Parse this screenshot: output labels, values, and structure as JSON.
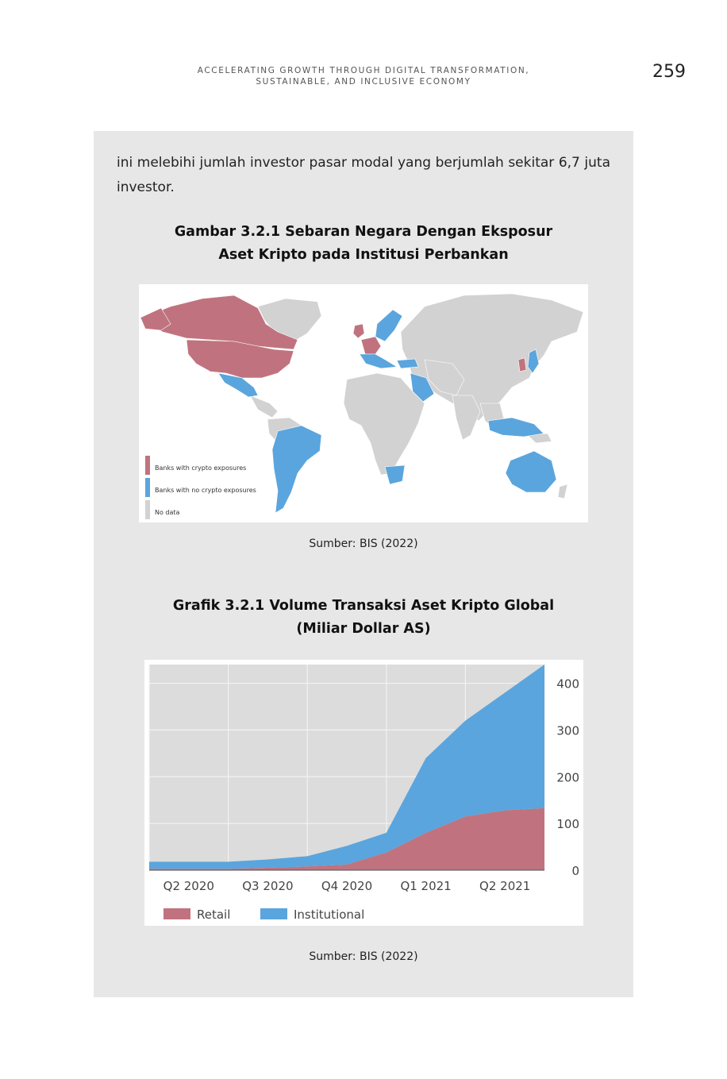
{
  "header": {
    "running_head_line1": "ACCELERATING GROWTH THROUGH DIGITAL TRANSFORMATION,",
    "running_head_line2": "SUSTAINABLE, AND INCLUSIVE ECONOMY",
    "page_number": "259"
  },
  "body": {
    "paragraph": "ini melebihi jumlah investor pasar modal yang berjumlah sekitar 6,7 juta investor."
  },
  "figure1": {
    "title_line1": "Gambar 3.2.1 Sebaran Negara Dengan Eksposur",
    "title_line2": "Aset Kripto pada Institusi Perbankan",
    "legend": [
      {
        "label": "Banks with crypto exposures",
        "color": "#c0737e"
      },
      {
        "label": "Banks with no crypto exposures",
        "color": "#5aa5dd"
      },
      {
        "label": "No data",
        "color": "#d2d2d2"
      }
    ],
    "source": "Sumber: BIS (2022)"
  },
  "figure2": {
    "title_line1": "Grafik 3.2.1 Volume Transaksi Aset Kripto Global",
    "title_line2": "(Miliar Dollar AS)",
    "source": "Sumber: BIS (2022)"
  },
  "chart_data": {
    "type": "area",
    "stacked": true,
    "x": [
      "Q2 2020",
      "Q3 2020",
      "Q4 2020",
      "Q1 2021",
      "Q2 2021"
    ],
    "x_values": [
      0,
      0.5,
      1,
      1.5,
      2,
      2.5,
      3,
      3.5,
      4,
      4.5,
      5
    ],
    "series": [
      {
        "name": "Retail",
        "color": "#c0737e",
        "values": [
          3,
          3,
          3,
          5,
          8,
          12,
          38,
          80,
          115,
          128,
          133
        ]
      },
      {
        "name": "Institutional",
        "color": "#5aa5dd",
        "values": [
          15,
          15,
          15,
          18,
          22,
          40,
          42,
          160,
          205,
          252,
          307
        ]
      }
    ],
    "ylim": [
      0,
      440
    ],
    "yticks": [
      0,
      100,
      200,
      300,
      400
    ],
    "y_axis_position": "right",
    "grid": true,
    "legend_position": "bottom-left"
  }
}
